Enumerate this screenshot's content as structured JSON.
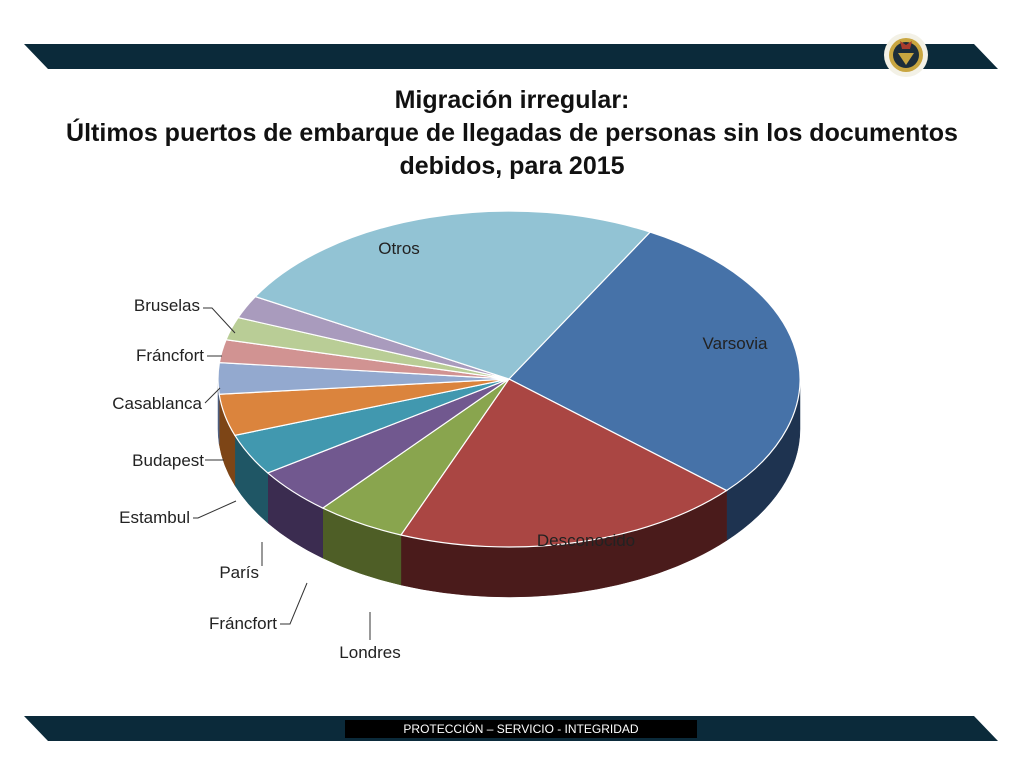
{
  "slide": {
    "title_line1": "Migración irregular:",
    "title_line2": "Últimos puertos de embarque de llegadas de personas sin los documentos debidos, para 2015",
    "footer": "PROTECCIÓN – SERVICIO - INTEGRIDAD",
    "logo_icon": "agency-badge-icon"
  },
  "chart_data": {
    "type": "pie",
    "style": "3d",
    "legend": "none",
    "categories": [
      "Varsovia",
      "Desconocido",
      "Londres",
      "Fránckfort",
      "París",
      "Estambul",
      "Budapest",
      "Casablanca",
      "Fránckfort",
      "Bruselas",
      "Otros"
    ],
    "labels": [
      "Varsovia",
      "Desconocido",
      "Londres",
      "Fráncfort",
      "París",
      "Estambul",
      "Budapest",
      "Casablanca",
      "Fráncfort",
      "Bruselas",
      "Otros"
    ],
    "values": [
      28.5,
      19.5,
      5.0,
      4.5,
      4.0,
      4.0,
      3.0,
      2.2,
      2.2,
      2.2,
      24.9
    ],
    "colors": [
      "#4672A8",
      "#AA4643",
      "#89A54E",
      "#71588F",
      "#4198AF",
      "#DB843D",
      "#93A9CF",
      "#D19392",
      "#B9CD96",
      "#A99BBD",
      "#92C3D4"
    ],
    "side_colors": [
      "#1e3350",
      "#4a1b1b",
      "#4e5e26",
      "#3b2c50",
      "#1f5665",
      "#7d4516",
      "#4c5e80",
      "#7c4a4a",
      "#6c7a4f",
      "#5d5073",
      "#4d7c8b"
    ]
  }
}
